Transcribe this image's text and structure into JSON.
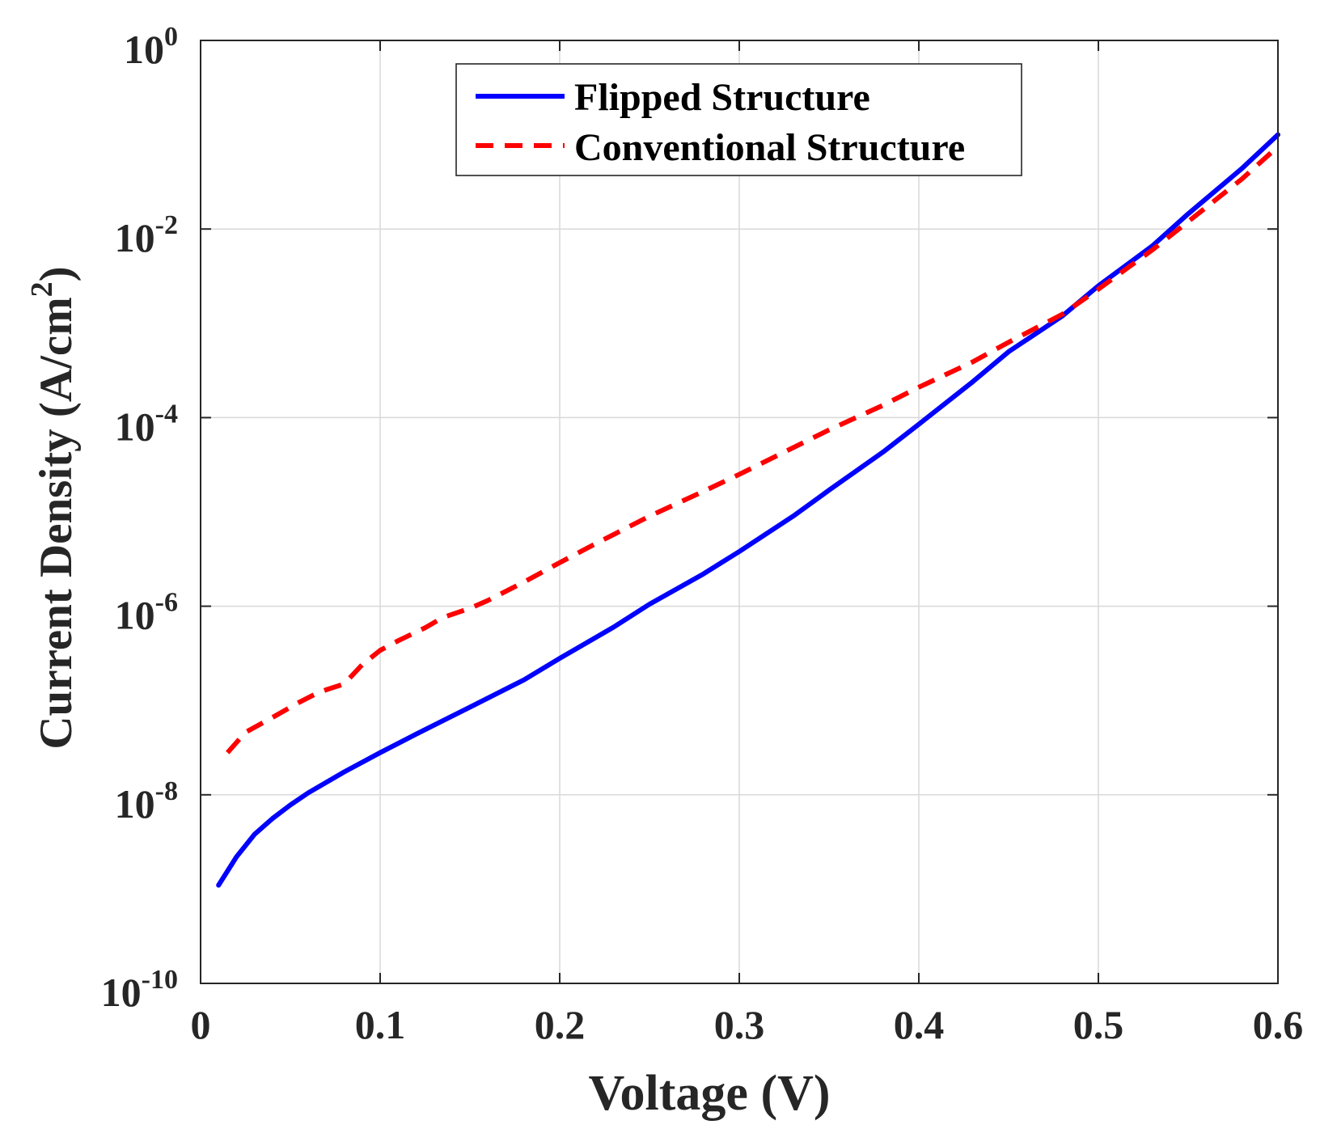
{
  "chart_data": {
    "type": "line",
    "title": "",
    "xlabel": "Voltage (V)",
    "ylabel": "Current Density (A/cm",
    "ylabel_sup": "2",
    "ylabel_close": ")",
    "xlim": [
      0,
      0.6
    ],
    "ylim": [
      1e-10,
      1
    ],
    "yscale": "log",
    "grid": true,
    "legend_position": "top-center",
    "x_ticks": [
      {
        "value": 0,
        "label": "0"
      },
      {
        "value": 0.1,
        "label": "0.1"
      },
      {
        "value": 0.2,
        "label": "0.2"
      },
      {
        "value": 0.3,
        "label": "0.3"
      },
      {
        "value": 0.4,
        "label": "0.4"
      },
      {
        "value": 0.5,
        "label": "0.5"
      },
      {
        "value": 0.6,
        "label": "0.6"
      }
    ],
    "y_ticks": [
      {
        "exp": 0,
        "base": "10",
        "power": "0"
      },
      {
        "exp": -2,
        "base": "10",
        "power": "-2"
      },
      {
        "exp": -4,
        "base": "10",
        "power": "-4"
      },
      {
        "exp": -6,
        "base": "10",
        "power": "-6"
      },
      {
        "exp": -8,
        "base": "10",
        "power": "-8"
      },
      {
        "exp": -10,
        "base": "10",
        "power": "-10"
      }
    ],
    "series": [
      {
        "name": "Flipped Structure",
        "color": "#0000ff",
        "style": "solid",
        "x": [
          0.01,
          0.02,
          0.03,
          0.04,
          0.05,
          0.06,
          0.08,
          0.1,
          0.12,
          0.15,
          0.18,
          0.2,
          0.23,
          0.25,
          0.28,
          0.3,
          0.33,
          0.35,
          0.38,
          0.4,
          0.43,
          0.45,
          0.48,
          0.5,
          0.53,
          0.55,
          0.58,
          0.6
        ],
        "y": [
          1.1e-09,
          2.2e-09,
          3.8e-09,
          5.6e-09,
          7.8e-09,
          1.05e-08,
          1.75e-08,
          2.8e-08,
          4.4e-08,
          8.5e-08,
          1.65e-07,
          2.8e-07,
          6e-07,
          1.05e-06,
          2.2e-06,
          3.8e-06,
          9e-06,
          1.7e-05,
          4.3e-05,
          8.5e-05,
          0.00024,
          0.0005,
          0.0012,
          0.0025,
          0.0066,
          0.0145,
          0.044,
          0.1
        ]
      },
      {
        "name": "Conventional Structure",
        "color": "#ff0000",
        "style": "dashed",
        "x": [
          0.015,
          0.025,
          0.04,
          0.055,
          0.065,
          0.07,
          0.08,
          0.09,
          0.1,
          0.11,
          0.125,
          0.135,
          0.15,
          0.16,
          0.18,
          0.2,
          0.22,
          0.25,
          0.28,
          0.3,
          0.33,
          0.35,
          0.38,
          0.4,
          0.43,
          0.45,
          0.48,
          0.5,
          0.53,
          0.55,
          0.58,
          0.6
        ],
        "y": [
          2.8e-08,
          4.6e-08,
          6.6e-08,
          9.6e-08,
          1.2e-07,
          1.3e-07,
          1.5e-07,
          2.4e-07,
          3.4e-07,
          4.3e-07,
          5.9e-07,
          7.6e-07,
          9.5e-07,
          1.15e-06,
          1.8e-06,
          2.9e-06,
          4.6e-06,
          9e-06,
          1.65e-05,
          2.5e-05,
          4.8e-05,
          7.4e-05,
          0.000135,
          0.00021,
          0.00039,
          0.00063,
          0.00125,
          0.0023,
          0.006,
          0.012,
          0.034,
          0.075
        ]
      }
    ]
  }
}
